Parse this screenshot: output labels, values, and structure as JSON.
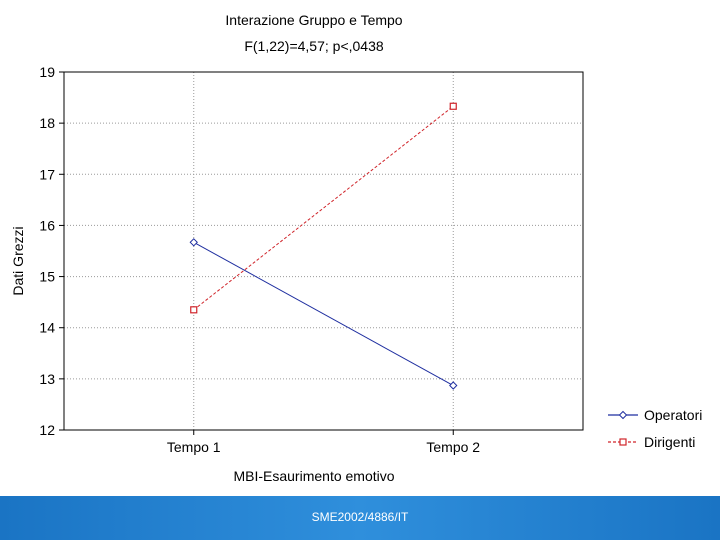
{
  "chart_data": {
    "type": "line",
    "title": "Interazione Gruppo e Tempo",
    "subtitle": "F(1,22)=4,57; p<,0438",
    "xlabel": "MBI-Esaurimento emotivo",
    "ylabel": "Dati Grezzi",
    "categories": [
      "Tempo 1",
      "Tempo 2"
    ],
    "ylim": [
      12,
      19
    ],
    "yticks": [
      12,
      13,
      14,
      15,
      16,
      17,
      18,
      19
    ],
    "grid": true,
    "legend_position": "bottom-right",
    "series": [
      {
        "name": "Operatori",
        "values": [
          15.67,
          12.87
        ],
        "color": "#1f2fa0",
        "marker": "diamond",
        "line_style": "solid"
      },
      {
        "name": "Dirigenti",
        "values": [
          14.35,
          18.33
        ],
        "color": "#d0242a",
        "marker": "square",
        "line_style": "dashed"
      }
    ]
  },
  "footer": {
    "text": "SME2002/4886/IT"
  }
}
